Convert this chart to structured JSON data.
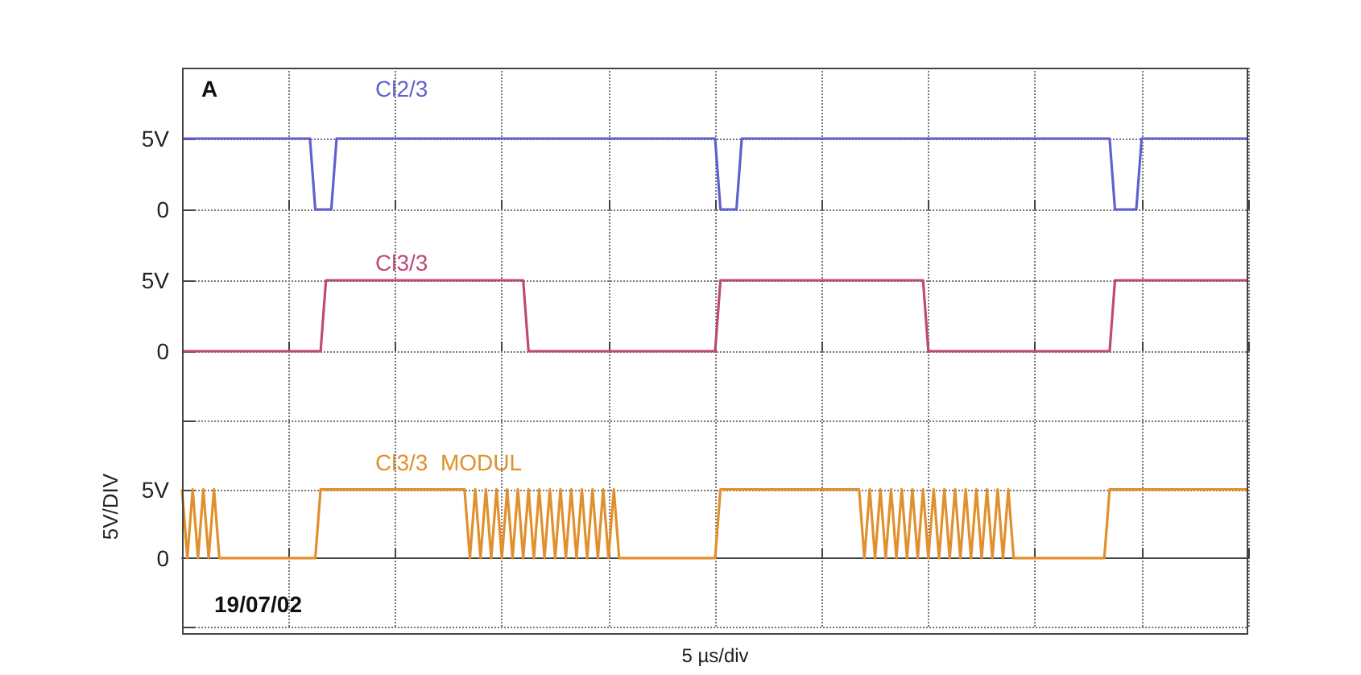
{
  "chart_data": [
    {
      "type": "line",
      "annotations": [
        "A"
      ],
      "categories": [
        null,
        null,
        null,
        null,
        null,
        null,
        null,
        null,
        null,
        null,
        null,
        null,
        null,
        null,
        null,
        null,
        null,
        null,
        null,
        null,
        null,
        null,
        null,
        null,
        null,
        null,
        null,
        null,
        null,
        null,
        null,
        null,
        null,
        null,
        null,
        null,
        null,
        null,
        null,
        null,
        null,
        null,
        null,
        null,
        null,
        null,
        null,
        null,
        null,
        null,
        null,
        null,
        null,
        null,
        null,
        null,
        null,
        null,
        null,
        null,
        null,
        null,
        null,
        null,
        null,
        null,
        null,
        null,
        null,
        null,
        null,
        null,
        null,
        null,
        null,
        null,
        null,
        null,
        null,
        null,
        null,
        null,
        null,
        null,
        null,
        null,
        null,
        null,
        null,
        null,
        null,
        null,
        null,
        null,
        null,
        null,
        null,
        null,
        null,
        null,
        null,
        null,
        null,
        null,
        null,
        null,
        null,
        null,
        null,
        null,
        null,
        null,
        null,
        null,
        null,
        null,
        null,
        null,
        null,
        null,
        null,
        null,
        null,
        null,
        null,
        null,
        null,
        null,
        null,
        null,
        null,
        null,
        null,
        null,
        null,
        null,
        null,
        null,
        null,
        null,
        null,
        null,
        null,
        null,
        null,
        null,
        null,
        null,
        null,
        null,
        null,
        null,
        null,
        null,
        null,
        null,
        null,
        null,
        null,
        null,
        null,
        null,
        null,
        null,
        null,
        null,
        null,
        null,
        null,
        null,
        null,
        null,
        null,
        null,
        null,
        null,
        null,
        null,
        null,
        null,
        null,
        null,
        null,
        null,
        null,
        null,
        null,
        null,
        null,
        null,
        null,
        null,
        null,
        null,
        null,
        null,
        null,
        null,
        null,
        null,
        null
      ],
      "ylim": [
        -2.5,
        10
      ],
      "yticks": [
        {
          "value": 0,
          "label": "0"
        },
        {
          "value": 5,
          "label": "5V"
        },
        {
          "value": 10,
          "label": null
        }
      ],
      "tick_labels": "y",
      "grid": true,
      "line_style": "solid",
      "series": [
        {
          "name": "Cl2/3",
          "color": "#6060d0",
          "values": [
            5,
            5,
            5,
            5,
            5,
            5,
            5,
            5,
            5,
            5,
            5,
            5,
            5,
            5,
            5,
            5,
            5,
            5,
            5,
            5,
            5,
            5,
            5,
            5,
            5,
            0,
            0,
            0,
            0,
            5,
            5,
            5,
            5,
            5,
            5,
            5,
            5,
            5,
            5,
            5,
            5,
            5,
            5,
            5,
            5,
            5,
            5,
            5,
            5,
            5,
            5,
            5,
            5,
            5,
            5,
            5,
            5,
            5,
            5,
            5,
            5,
            5,
            5,
            5,
            5,
            5,
            5,
            5,
            5,
            5,
            5,
            5,
            5,
            5,
            5,
            5,
            5,
            5,
            5,
            5,
            5,
            5,
            5,
            5,
            5,
            5,
            5,
            5,
            5,
            5,
            5,
            5,
            5,
            5,
            5,
            5,
            5,
            5,
            5,
            5,
            5,
            0,
            0,
            0,
            0,
            5,
            5,
            5,
            5,
            5,
            5,
            5,
            5,
            5,
            5,
            5,
            5,
            5,
            5,
            5,
            5,
            5,
            5,
            5,
            5,
            5,
            5,
            5,
            5,
            5,
            5,
            5,
            5,
            5,
            5,
            5,
            5,
            5,
            5,
            5,
            5,
            5,
            5,
            5,
            5,
            5,
            5,
            5,
            5,
            5,
            5,
            5,
            5,
            5,
            5,
            5,
            5,
            5,
            5,
            5,
            5,
            5,
            5,
            5,
            5,
            5,
            5,
            5,
            5,
            5,
            5,
            5,
            5,
            5,
            5,
            0,
            0,
            0,
            0,
            0,
            5,
            5,
            5,
            5,
            5,
            5,
            5,
            5,
            5,
            5,
            5,
            5,
            5,
            5,
            5,
            5,
            5,
            5,
            5,
            5,
            5
          ]
        }
      ]
    },
    {
      "type": "line",
      "categories": [
        null,
        null,
        null,
        null,
        null,
        null,
        null,
        null,
        null,
        null,
        null,
        null,
        null,
        null,
        null,
        null,
        null,
        null,
        null,
        null,
        null,
        null,
        null,
        null,
        null,
        null,
        null,
        null,
        null,
        null,
        null,
        null,
        null,
        null,
        null,
        null,
        null,
        null,
        null,
        null,
        null,
        null,
        null,
        null,
        null,
        null,
        null,
        null,
        null,
        null,
        null,
        null,
        null,
        null,
        null,
        null,
        null,
        null,
        null,
        null,
        null,
        null,
        null,
        null,
        null,
        null,
        null,
        null,
        null,
        null,
        null,
        null,
        null,
        null,
        null,
        null,
        null,
        null,
        null,
        null,
        null,
        null,
        null,
        null,
        null,
        null,
        null,
        null,
        null,
        null,
        null,
        null,
        null,
        null,
        null,
        null,
        null,
        null,
        null,
        null,
        null,
        null,
        null,
        null,
        null,
        null,
        null,
        null,
        null,
        null,
        null,
        null,
        null,
        null,
        null,
        null,
        null,
        null,
        null,
        null,
        null,
        null,
        null,
        null,
        null,
        null,
        null,
        null,
        null,
        null,
        null,
        null,
        null,
        null,
        null,
        null,
        null,
        null,
        null,
        null,
        null,
        null,
        null,
        null,
        null,
        null,
        null,
        null,
        null,
        null,
        null,
        null,
        null,
        null,
        null,
        null,
        null,
        null,
        null,
        null,
        null,
        null,
        null,
        null,
        null,
        null,
        null,
        null,
        null,
        null,
        null,
        null,
        null,
        null,
        null,
        null,
        null,
        null,
        null,
        null,
        null,
        null,
        null,
        null,
        null,
        null,
        null,
        null,
        null,
        null,
        null,
        null,
        null,
        null,
        null,
        null,
        null,
        null,
        null,
        null,
        null
      ],
      "ylim": [
        -2.5,
        7.5
      ],
      "yticks": [
        {
          "value": 0,
          "label": "0"
        },
        {
          "value": 5,
          "label": "5V"
        }
      ],
      "tick_labels": "y",
      "grid": true,
      "line_style": "solid",
      "series": [
        {
          "name": "Cl3/3",
          "color": "#c04878",
          "values": [
            0,
            0,
            0,
            0,
            0,
            0,
            0,
            0,
            0,
            0,
            0,
            0,
            0,
            0,
            0,
            0,
            0,
            0,
            0,
            0,
            0,
            0,
            0,
            0,
            0,
            0,
            0,
            5,
            5,
            5,
            5,
            5,
            5,
            5,
            5,
            5,
            5,
            5,
            5,
            5,
            5,
            5,
            5,
            5,
            5,
            5,
            5,
            5,
            5,
            5,
            5,
            5,
            5,
            5,
            5,
            5,
            5,
            5,
            5,
            5,
            5,
            5,
            5,
            5,
            5,
            0,
            0,
            0,
            0,
            0,
            0,
            0,
            0,
            0,
            0,
            0,
            0,
            0,
            0,
            0,
            0,
            0,
            0,
            0,
            0,
            0,
            0,
            0,
            0,
            0,
            0,
            0,
            0,
            0,
            0,
            0,
            0,
            0,
            0,
            0,
            0,
            5,
            5,
            5,
            5,
            5,
            5,
            5,
            5,
            5,
            5,
            5,
            5,
            5,
            5,
            5,
            5,
            5,
            5,
            5,
            5,
            5,
            5,
            5,
            5,
            5,
            5,
            5,
            5,
            5,
            5,
            5,
            5,
            5,
            5,
            5,
            5,
            5,
            5,
            5,
            0,
            0,
            0,
            0,
            0,
            0,
            0,
            0,
            0,
            0,
            0,
            0,
            0,
            0,
            0,
            0,
            0,
            0,
            0,
            0,
            0,
            0,
            0,
            0,
            0,
            0,
            0,
            0,
            0,
            0,
            0,
            0,
            0,
            0,
            0,
            5,
            5,
            5,
            5,
            5,
            5,
            5,
            5,
            5,
            5,
            5,
            5,
            5,
            5,
            5,
            5,
            5,
            5,
            5,
            5,
            5,
            5,
            5,
            5,
            5,
            5
          ]
        }
      ]
    },
    {
      "type": "line",
      "xlabel": "5 µs/div",
      "ylabel": "5V/DIV",
      "annotations": [
        "19/07/02"
      ],
      "categories": [
        null,
        null,
        null,
        null,
        null,
        null,
        null,
        null,
        null,
        null,
        null,
        null,
        null,
        null,
        null,
        null,
        null,
        null,
        null,
        null,
        null,
        null,
        null,
        null,
        null,
        null,
        null,
        null,
        null,
        null,
        null,
        null,
        null,
        null,
        null,
        null,
        null,
        null,
        null,
        null,
        null,
        null,
        null,
        null,
        null,
        null,
        null,
        null,
        null,
        null,
        null,
        null,
        null,
        null,
        null,
        null,
        null,
        null,
        null,
        null,
        null,
        null,
        null,
        null,
        null,
        null,
        null,
        null,
        null,
        null,
        null,
        null,
        null,
        null,
        null,
        null,
        null,
        null,
        null,
        null,
        null,
        null,
        null,
        null,
        null,
        null,
        null,
        null,
        null,
        null,
        null,
        null,
        null,
        null,
        null,
        null,
        null,
        null,
        null,
        null,
        null,
        null,
        null,
        null,
        null,
        null,
        null,
        null,
        null,
        null,
        null,
        null,
        null,
        null,
        null,
        null,
        null,
        null,
        null,
        null,
        null,
        null,
        null,
        null,
        null,
        null,
        null,
        null,
        null,
        null,
        null,
        null,
        null,
        null,
        null,
        null,
        null,
        null,
        null,
        null,
        null,
        null,
        null,
        null,
        null,
        null,
        null,
        null,
        null,
        null,
        null,
        null,
        null,
        null,
        null,
        null,
        null,
        null,
        null,
        null,
        null,
        null,
        null,
        null,
        null,
        null,
        null,
        null,
        null,
        null,
        null,
        null,
        null,
        null,
        null,
        null,
        null,
        null,
        null,
        null,
        null,
        null,
        null,
        null,
        null,
        null,
        null,
        null,
        null,
        null,
        null,
        null,
        null,
        null,
        null,
        null,
        null,
        null,
        null,
        null,
        null
      ],
      "ylim": [
        -5,
        12.5
      ],
      "yticks": [
        {
          "value": -5,
          "label": null
        },
        {
          "value": 0,
          "label": "0"
        },
        {
          "value": 5,
          "label": "5V"
        },
        {
          "value": 10,
          "label": null
        }
      ],
      "tick_labels": "y",
      "grid": true,
      "line_style": "solid",
      "series": [
        {
          "name": "Cl3/3  MODUL",
          "color": "#e0902c",
          "values": [
            5,
            0,
            5,
            0,
            5,
            0,
            5,
            0,
            0,
            0,
            0,
            0,
            0,
            0,
            0,
            0,
            0,
            0,
            0,
            0,
            0,
            0,
            0,
            0,
            0,
            0,
            5,
            5,
            5,
            5,
            5,
            5,
            5,
            5,
            5,
            5,
            5,
            5,
            5,
            5,
            5,
            5,
            5,
            5,
            5,
            5,
            5,
            5,
            5,
            5,
            5,
            5,
            5,
            5,
            0,
            5,
            0,
            5,
            0,
            5,
            0,
            5,
            0,
            5,
            0,
            5,
            0,
            5,
            0,
            5,
            0,
            5,
            0,
            5,
            0,
            5,
            0,
            5,
            0,
            5,
            0,
            5,
            0,
            0,
            0,
            0,
            0,
            0,
            0,
            0,
            0,
            0,
            0,
            0,
            0,
            0,
            0,
            0,
            0,
            0,
            0,
            5,
            5,
            5,
            5,
            5,
            5,
            5,
            5,
            5,
            5,
            5,
            5,
            5,
            5,
            5,
            5,
            5,
            5,
            5,
            5,
            5,
            5,
            5,
            5,
            5,
            5,
            5,
            0,
            5,
            0,
            5,
            0,
            5,
            0,
            5,
            0,
            5,
            0,
            5,
            0,
            5,
            0,
            5,
            0,
            5,
            0,
            5,
            0,
            5,
            0,
            5,
            0,
            5,
            0,
            5,
            0,
            0,
            0,
            0,
            0,
            0,
            0,
            0,
            0,
            0,
            0,
            0,
            0,
            0,
            0,
            0,
            0,
            0,
            5,
            5,
            5,
            5,
            5,
            5,
            5,
            5,
            5,
            5,
            5,
            5,
            5,
            5,
            5,
            5,
            5,
            5,
            5,
            5,
            5,
            5,
            5,
            5,
            5,
            5,
            5
          ]
        }
      ]
    }
  ]
}
